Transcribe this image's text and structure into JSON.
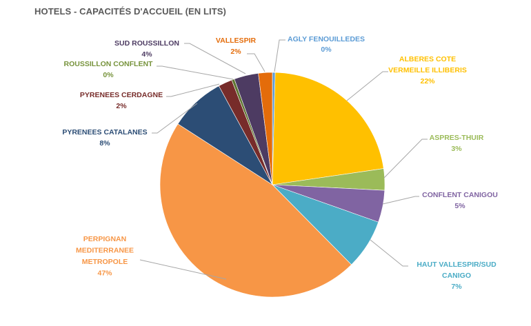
{
  "chart_data": {
    "type": "pie",
    "title": "HOTELS - CAPACITÉS D'ACCUEIL (EN LITS)",
    "start_angle": "top, clockwise",
    "slices": [
      {
        "label": "AGLY FENOUILLEDES",
        "label_lines": [
          "AGLY FENOUILLEDES"
        ],
        "percent_label": "0%",
        "value": 0.4,
        "color": "#5b9bd5"
      },
      {
        "label": "ALBERES COTE VERMEILLE ILLIBERIS",
        "label_lines": [
          "ALBERES  COTE",
          "VERMEILLE  ILLIBERIS"
        ],
        "percent_label": "22%",
        "value": 22.3,
        "color": "#ffc000"
      },
      {
        "label": "ASPRES-THUIR",
        "label_lines": [
          "ASPRES-THUIR"
        ],
        "percent_label": "3%",
        "value": 3.1,
        "color": "#9bbb59"
      },
      {
        "label": "CONFLENT CANIGOU",
        "label_lines": [
          "CONFLENT CANIGOU"
        ],
        "percent_label": "5%",
        "value": 4.6,
        "color": "#8064a2"
      },
      {
        "label": "HAUT VALLESPIR/SUD CANIGO",
        "label_lines": [
          "HAUT  VALLESPIR/SUD",
          "CANIGO"
        ],
        "percent_label": "7%",
        "value": 7.2,
        "color": "#4bacc6"
      },
      {
        "label": "PERPIGNAN MEDITERRANEE METROPOLE",
        "label_lines": [
          "PERPIGNAN",
          "MEDITERRANEE",
          "METROPOLE"
        ],
        "percent_label": "47%",
        "value": 46.5,
        "color": "#f79646"
      },
      {
        "label": "PYRENEES CATALANES",
        "label_lines": [
          "PYRENEES  CATALANES"
        ],
        "percent_label": "8%",
        "value": 8.0,
        "color": "#2c4d75"
      },
      {
        "label": "PYRENEES CERDAGNE",
        "label_lines": [
          "PYRENEES  CERDAGNE"
        ],
        "percent_label": "2%",
        "value": 2.0,
        "color": "#772c2a"
      },
      {
        "label": "ROUSSILLON CONFLENT",
        "label_lines": [
          "ROUSSILLON CONFLENT"
        ],
        "percent_label": "0%",
        "value": 0.4,
        "color": "#5f7530"
      },
      {
        "label": "SUD ROUSSILLON",
        "label_lines": [
          "SUD ROUSSILLON"
        ],
        "percent_label": "4%",
        "value": 3.5,
        "color": "#4d3b62"
      },
      {
        "label": "VALLESPIR",
        "label_lines": [
          "VALLESPIR"
        ],
        "percent_label": "2%",
        "value": 2.0,
        "color": "#e46c0a"
      }
    ],
    "label_colors": [
      "#5b9bd5",
      "#ffc000",
      "#9bbb59",
      "#8064a2",
      "#4bacc6",
      "#f79646",
      "#2c4d75",
      "#772c2a",
      "#77933c",
      "#4d3b62",
      "#e46c0a"
    ],
    "legend": "none (data labels with leader lines)"
  }
}
